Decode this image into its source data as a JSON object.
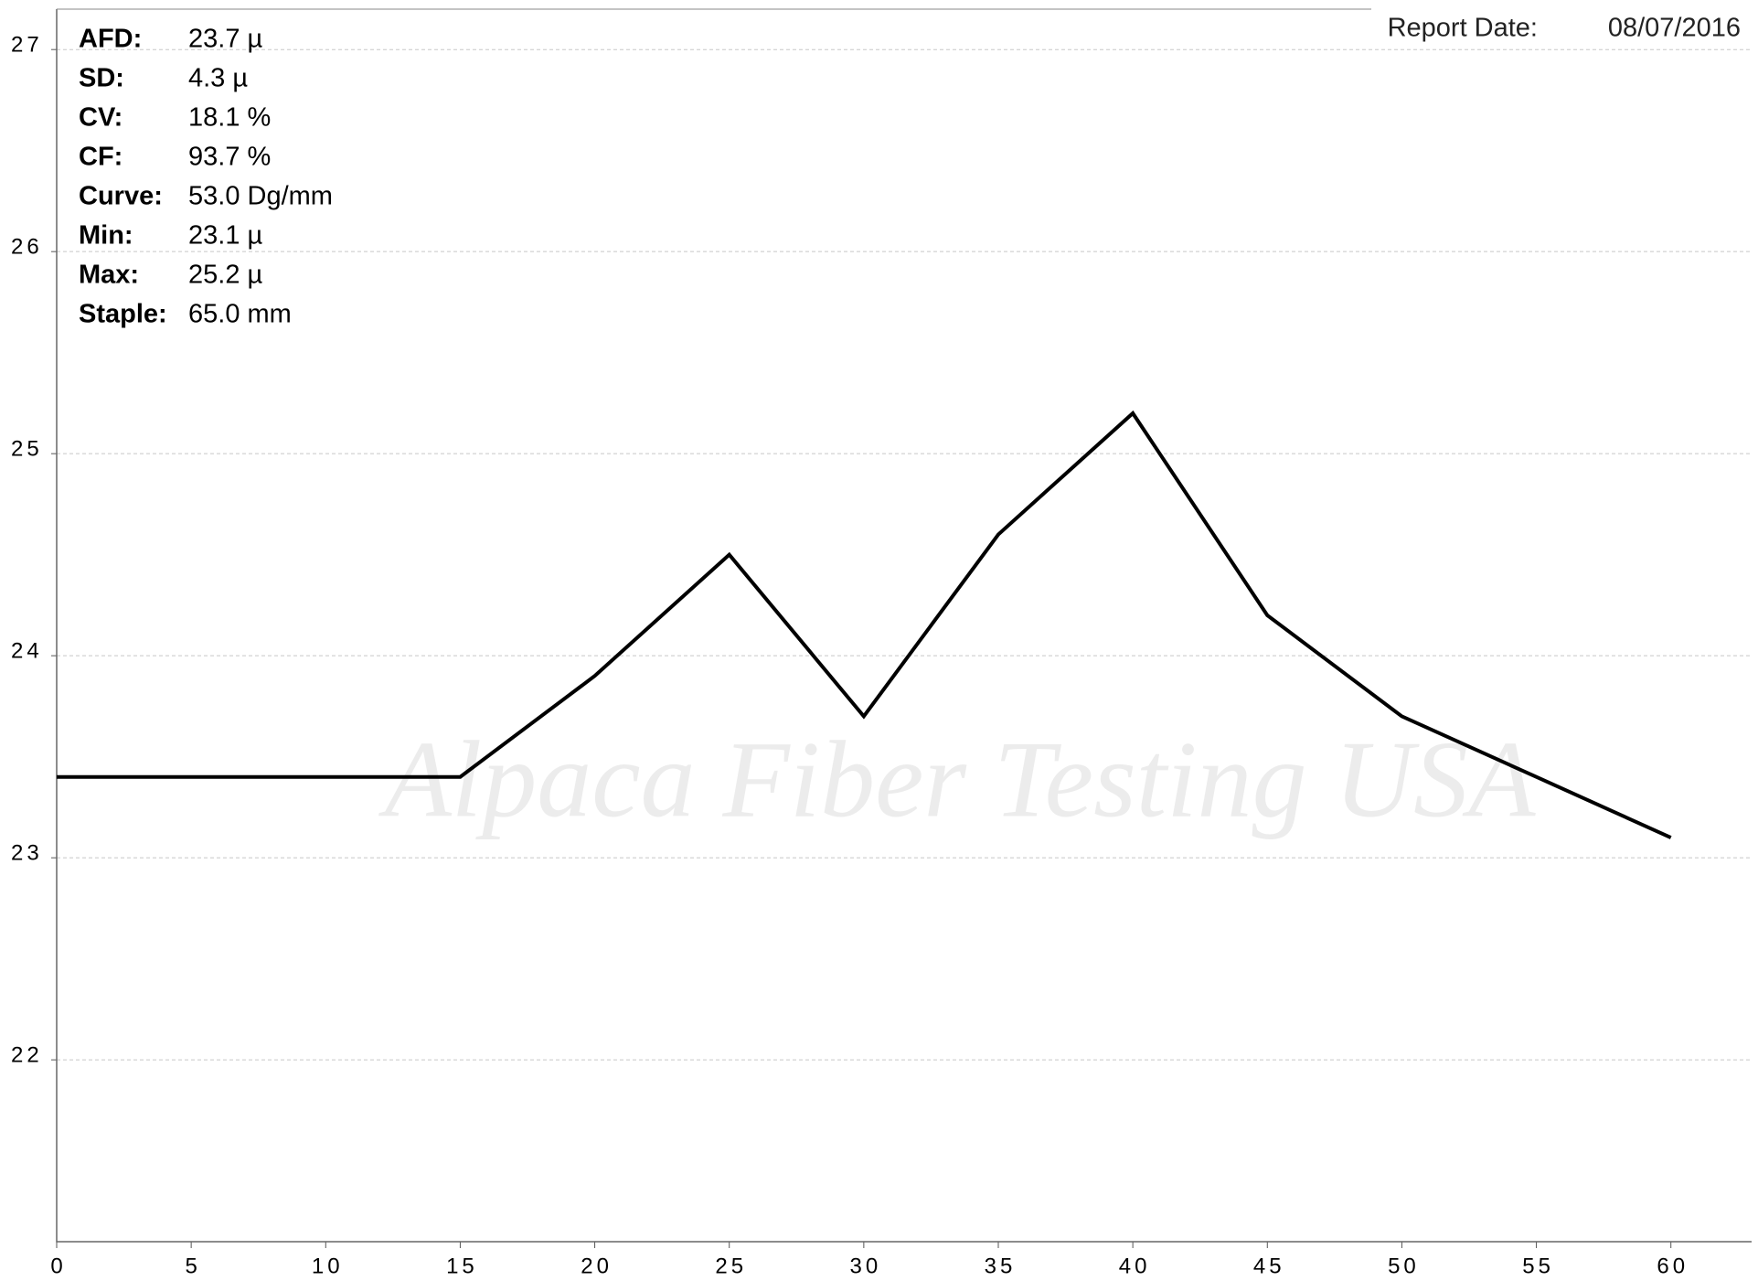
{
  "chart_data": {
    "type": "line",
    "x": [
      0,
      5,
      10,
      15,
      20,
      25,
      30,
      35,
      40,
      45,
      50,
      55,
      60
    ],
    "series": [
      {
        "name": null,
        "color": "#000000",
        "values": [
          23.4,
          23.4,
          23.4,
          23.4,
          23.9,
          24.5,
          23.7,
          24.6,
          25.2,
          24.2,
          23.7,
          23.4,
          23.1
        ]
      }
    ],
    "xlim": [
      0,
      63
    ],
    "ylim": [
      21.1,
      27.2
    ],
    "xticks": [
      0,
      5,
      10,
      15,
      20,
      25,
      30,
      35,
      40,
      45,
      50,
      55,
      60
    ],
    "yticks": [
      22,
      23,
      24,
      25,
      26,
      27
    ],
    "grid": true,
    "watermark": "Alpaca Fiber Testing USA"
  },
  "stats": [
    {
      "label": "AFD:",
      "value": "23.7 µ"
    },
    {
      "label": "SD:",
      "value": "4.3 µ"
    },
    {
      "label": "CV:",
      "value": "18.1 %"
    },
    {
      "label": "CF:",
      "value": "93.7 %"
    },
    {
      "label": "Curve:",
      "value": "53.0 Dg/mm"
    },
    {
      "label": "Min:",
      "value": "23.1 µ"
    },
    {
      "label": "Max:",
      "value": "25.2 µ"
    },
    {
      "label": "Staple:",
      "value": "65.0 mm"
    }
  ],
  "report_date": {
    "label": "Report Date:",
    "value": "08/07/2016"
  }
}
